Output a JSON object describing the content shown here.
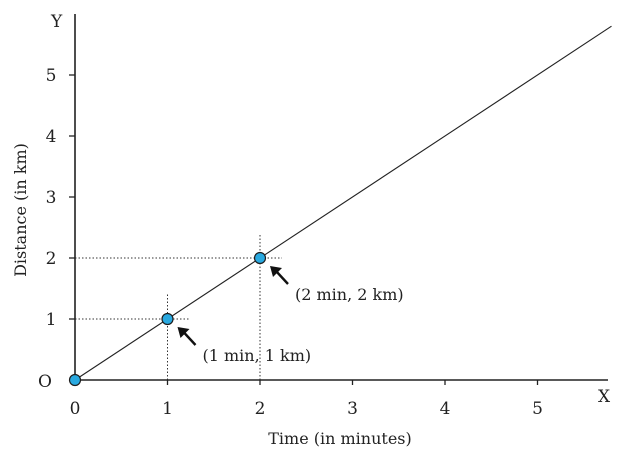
{
  "chart_data": {
    "type": "line",
    "title": "",
    "xlabel": "Time (in minutes)",
    "ylabel": "Distance (in km)",
    "x_axis_letter": "X",
    "y_axis_letter": "Y",
    "origin_label": "O",
    "xlim": [
      0,
      5.8
    ],
    "ylim": [
      0,
      6
    ],
    "x_ticks": [
      "0",
      "1",
      "2",
      "3",
      "4",
      "5"
    ],
    "y_ticks": [
      "1",
      "2",
      "3",
      "4",
      "5"
    ],
    "grid": false,
    "legend": "none",
    "series": [
      {
        "x": [
          0,
          5.8
        ],
        "y": [
          0,
          5.8
        ]
      }
    ],
    "points": [
      {
        "x": 0,
        "y": 0,
        "label": ""
      },
      {
        "x": 1,
        "y": 1,
        "label": "(1 min, 1 km)"
      },
      {
        "x": 2,
        "y": 2,
        "label": "(2 min, 2 km)"
      }
    ],
    "colors": {
      "point": "#29a9e0",
      "line": "#222222"
    }
  }
}
